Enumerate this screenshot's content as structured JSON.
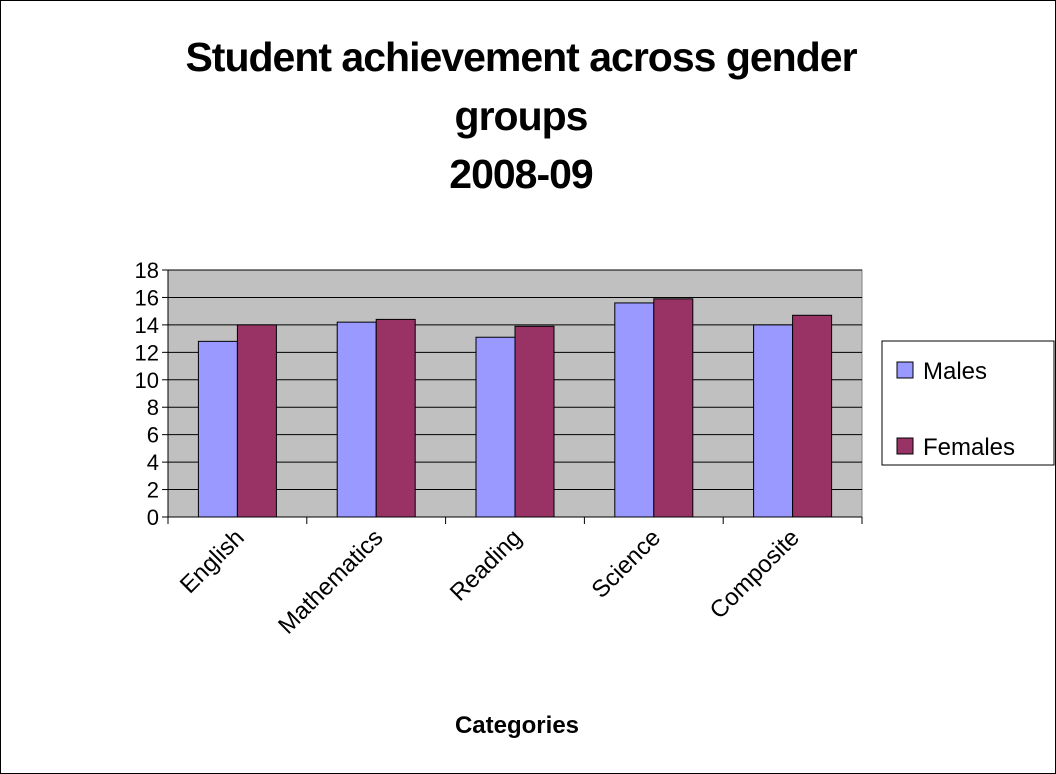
{
  "chart_data": {
    "type": "bar",
    "title_lines": [
      "Student achievement across gender",
      "groups",
      "2008-09"
    ],
    "xlabel": "Categories",
    "ylabel": "",
    "categories": [
      "English",
      "Mathematics",
      "Reading",
      "Science",
      "Composite"
    ],
    "series": [
      {
        "name": "Males",
        "values": [
          12.8,
          14.2,
          13.1,
          15.6,
          14.0
        ],
        "color": "#9999ff"
      },
      {
        "name": "Females",
        "values": [
          14.0,
          14.4,
          13.9,
          15.9,
          14.7
        ],
        "color": "#993366"
      }
    ],
    "ylim": [
      0,
      18
    ],
    "yticks": [
      0,
      2,
      4,
      6,
      8,
      10,
      12,
      14,
      16,
      18
    ],
    "grid": true,
    "plot_background": "#c0c0c0",
    "legend_position": "right"
  }
}
